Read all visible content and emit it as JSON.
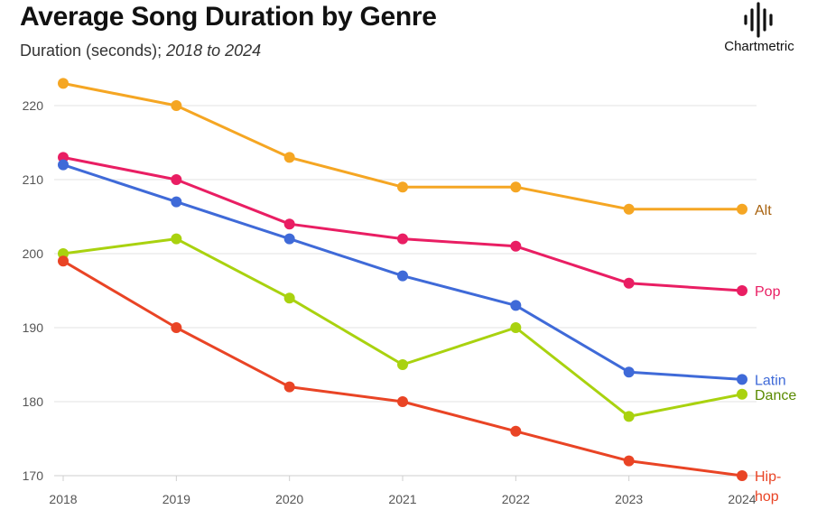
{
  "header": {
    "title": "Average Song Duration by Genre",
    "subtitle_main": "Duration (seconds); ",
    "subtitle_range": "2018 to 2024"
  },
  "logo": {
    "name": "Chartmetric",
    "icon": "sound-wave-icon"
  },
  "chart_data": {
    "type": "line",
    "title": "Average Song Duration by Genre",
    "ylabel": "Duration (seconds)",
    "x": [
      2018,
      2019,
      2020,
      2021,
      2022,
      2023,
      2024
    ],
    "ylim": [
      170,
      225
    ],
    "yticks": [
      170,
      180,
      190,
      200,
      210,
      220
    ],
    "grid": true,
    "legend": "direct labels at line ends",
    "series": [
      {
        "name": "Alt",
        "color": "#F5A623",
        "label_color": "#A8620F",
        "values": [
          223,
          220,
          213,
          209,
          209,
          206,
          206
        ]
      },
      {
        "name": "Pop",
        "color": "#E91E63",
        "label_color": "#E91E63",
        "values": [
          213,
          210,
          204,
          202,
          201,
          196,
          195
        ]
      },
      {
        "name": "Latin",
        "color": "#3F6AD8",
        "label_color": "#3F6AD8",
        "values": [
          212,
          207,
          202,
          197,
          193,
          184,
          183
        ]
      },
      {
        "name": "Dance",
        "color": "#A9D20F",
        "label_color": "#5A8A00",
        "values": [
          200,
          202,
          194,
          185,
          190,
          178,
          181
        ]
      },
      {
        "name": "Hip-hop",
        "label_lines": [
          "Hip-",
          "hop"
        ],
        "color": "#E94425",
        "label_color": "#E94425",
        "values": [
          199,
          190,
          182,
          180,
          176,
          172,
          170
        ]
      }
    ]
  }
}
